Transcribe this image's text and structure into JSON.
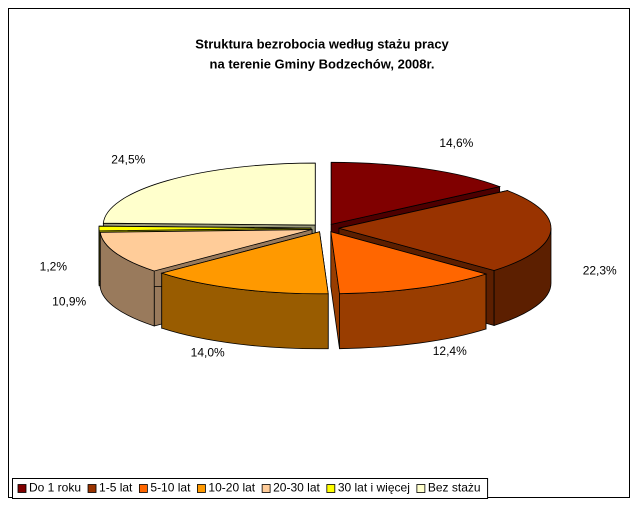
{
  "chart_data": {
    "type": "pie3d",
    "title": [
      "Struktura bezrobocia według stażu pracy",
      "na terenie Gminy Bodzechów, 2008r."
    ],
    "categories": [
      "Do 1 roku",
      "1-5 lat",
      "5-10 lat",
      "10-20 lat",
      "20-30 lat",
      "30 lat i więcej",
      "Bez stażu"
    ],
    "values": [
      14.6,
      22.3,
      12.4,
      14.0,
      10.9,
      1.2,
      24.5
    ],
    "value_labels": [
      "14,6%",
      "22,3%",
      "12,4%",
      "14,0%",
      "10,9%",
      "1,2%",
      "24,5%"
    ],
    "colors": [
      "#800000",
      "#993300",
      "#ff6600",
      "#ff9900",
      "#ffcc99",
      "#ffff00",
      "#ffffcc"
    ],
    "legend": "bottom"
  }
}
